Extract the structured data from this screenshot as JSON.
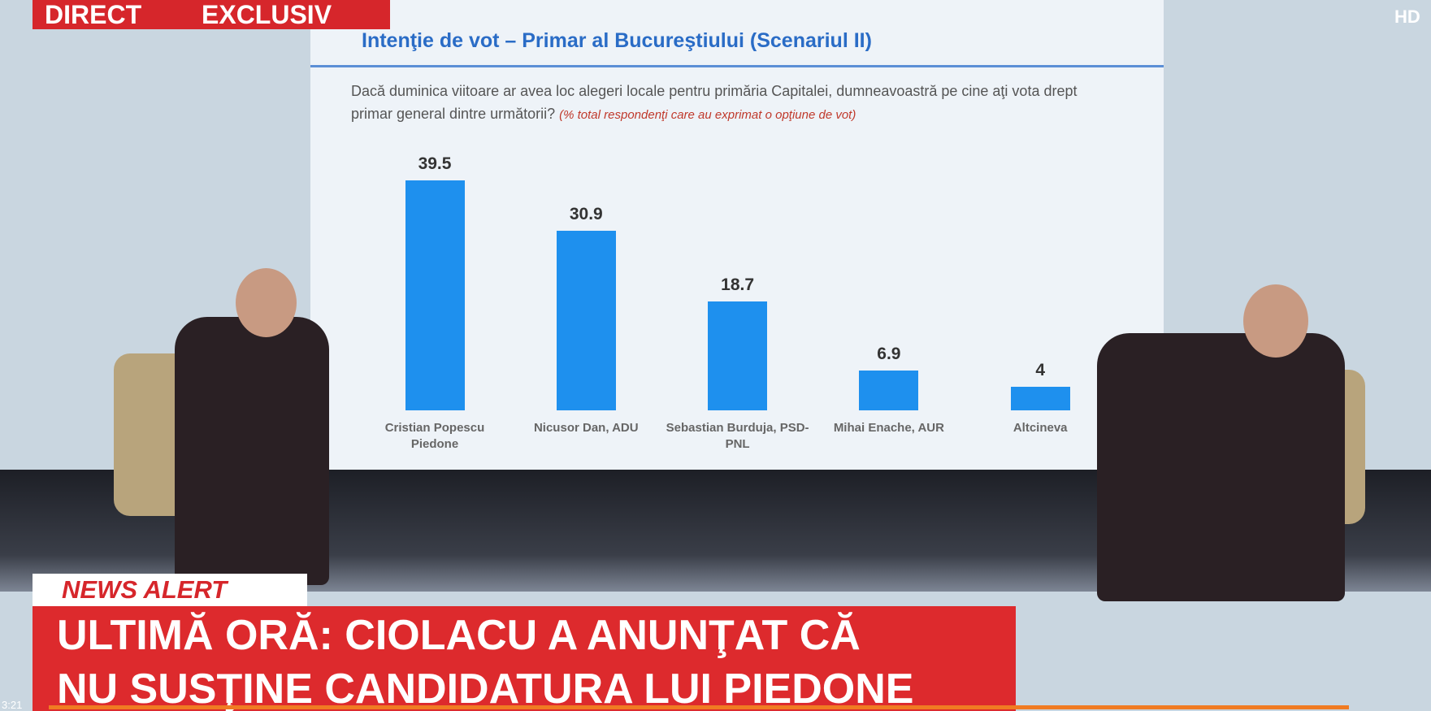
{
  "overlay": {
    "live": "DIRECT",
    "exclusive": "EXCLUSIV",
    "hd": "HD",
    "alert": "NEWS ALERT",
    "headline": [
      "ULTIMĂ ORĂ: CIOLACU A ANUNŢAT CĂ",
      "NU SUSŢINE CANDIDATURA LUI PIEDONE"
    ],
    "time": "3:21"
  },
  "chart_data": {
    "type": "bar",
    "title": "Intenţie de vot – Primar al Bucureştiului (Scenariul II)",
    "subtitle": "Dacă duminica viitoare ar avea loc alegeri locale pentru primăria Capitalei,  dumneavoastră pe cine aţi vota drept primar general dintre următorii?",
    "note": "(% total respondenţi care au exprimat o opţiune de vot)",
    "categories": [
      "Cristian Popescu Piedone",
      "Nicusor Dan, ADU",
      "Sebastian Burduja, PSD-PNL",
      "Mihai Enache, AUR",
      "Altcineva"
    ],
    "values": [
      39.5,
      30.9,
      18.7,
      6.9,
      4
    ],
    "color": "#1e90ee"
  }
}
